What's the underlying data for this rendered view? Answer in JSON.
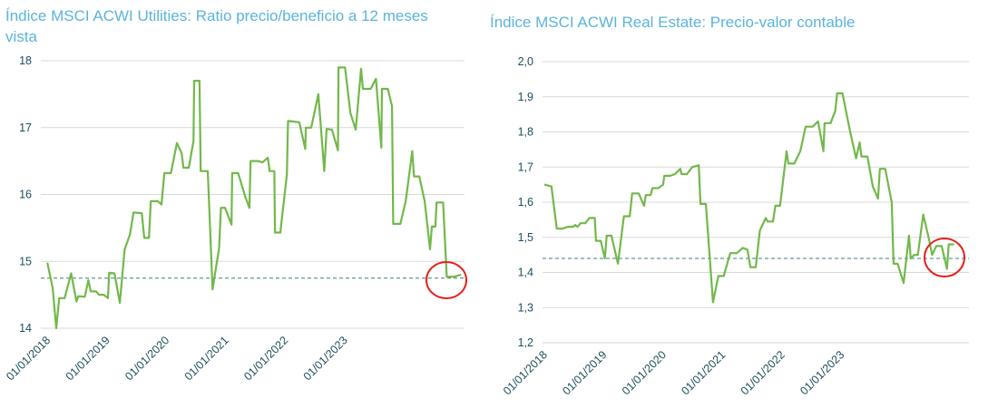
{
  "chart_data": [
    {
      "type": "line",
      "title": "Índice MSCI ACWI Utilities: Ratio precio/beneficio a 12 meses vista",
      "x": [
        2018.0,
        2018.09,
        2018.15,
        2018.2,
        2018.29,
        2018.4,
        2018.49,
        2018.52,
        2018.63,
        2018.69,
        2018.73,
        2018.82,
        2018.87,
        2018.95,
        2019.02,
        2019.04,
        2019.13,
        2019.22,
        2019.3,
        2019.39,
        2019.45,
        2019.59,
        2019.63,
        2019.71,
        2019.74,
        2019.86,
        2019.92,
        2019.97,
        2020.08,
        2020.18,
        2020.26,
        2020.29,
        2020.38,
        2020.46,
        2020.47,
        2020.56,
        2020.58,
        2020.7,
        2020.78,
        2020.89,
        2020.92,
        2020.99,
        2021.1,
        2021.11,
        2021.21,
        2021.33,
        2021.4,
        2021.42,
        2021.54,
        2021.62,
        2021.71,
        2021.74,
        2021.82,
        2021.83,
        2021.92,
        2022.03,
        2022.05,
        2022.24,
        2022.34,
        2022.35,
        2022.44,
        2022.56,
        2022.66,
        2022.7,
        2022.79,
        2022.89,
        2022.9,
        2023.01,
        2023.1,
        2023.19,
        2023.28,
        2023.31,
        2023.44,
        2023.53,
        2023.62,
        2023.63,
        2023.73,
        2023.8,
        2023.82,
        2023.94,
        2024.03,
        2024.14,
        2024.17,
        2024.26,
        2024.35,
        2024.44,
        2024.47,
        2024.53,
        2024.55,
        2024.66,
        2024.72,
        2024.84,
        2024.96
      ],
      "series": [
        {
          "color": "#72b84a",
          "values": [
            14.98,
            14.6,
            14.0,
            14.45,
            14.45,
            14.82,
            14.4,
            14.48,
            14.47,
            14.72,
            14.55,
            14.55,
            14.5,
            14.5,
            14.45,
            14.83,
            14.82,
            14.38,
            15.18,
            15.4,
            15.73,
            15.72,
            15.35,
            15.35,
            15.9,
            15.9,
            15.85,
            16.32,
            16.32,
            16.77,
            16.62,
            16.4,
            16.4,
            16.8,
            17.7,
            17.7,
            16.35,
            16.35,
            14.58,
            15.2,
            15.8,
            15.8,
            15.55,
            16.32,
            16.32,
            15.97,
            15.8,
            16.5,
            16.5,
            16.48,
            16.55,
            16.35,
            16.35,
            15.43,
            15.43,
            16.3,
            17.1,
            17.08,
            16.68,
            17.0,
            17.0,
            17.5,
            16.35,
            16.98,
            16.97,
            16.66,
            17.9,
            17.9,
            17.22,
            16.97,
            17.88,
            17.58,
            17.58,
            17.73,
            16.7,
            17.58,
            17.58,
            17.32,
            15.56,
            15.56,
            15.9,
            16.65,
            16.27,
            16.27,
            15.9,
            15.18,
            15.52,
            15.52,
            15.88,
            15.88,
            14.77,
            14.77,
            14.8
          ]
        }
      ],
      "hline": 14.75,
      "xlim": [
        2017.89,
        2025.02
      ],
      "xticks": [
        {
          "value": 2018,
          "label": "01/01/2018"
        },
        {
          "value": 2019,
          "label": "01/01/2019"
        },
        {
          "value": 2020,
          "label": "01/01/2020"
        },
        {
          "value": 2021,
          "label": "01/01/2021"
        },
        {
          "value": 2022,
          "label": "01/01/2022"
        },
        {
          "value": 2023,
          "label": "01/01/2023"
        }
      ],
      "ylim": [
        14,
        18
      ],
      "yticks": [
        14,
        15,
        16,
        17,
        18
      ],
      "grid": true
    },
    {
      "type": "line",
      "title": "Índice MSCI ACWI Real Estate: Precio-valor contable",
      "x": [
        2018.0,
        2018.12,
        2018.21,
        2018.31,
        2018.4,
        2018.49,
        2018.52,
        2018.56,
        2018.61,
        2018.69,
        2018.76,
        2018.85,
        2018.87,
        2018.95,
        2019.02,
        2019.05,
        2019.13,
        2019.24,
        2019.34,
        2019.44,
        2019.48,
        2019.59,
        2019.68,
        2019.71,
        2019.79,
        2019.82,
        2019.92,
        2020.0,
        2020.02,
        2020.12,
        2020.2,
        2020.29,
        2020.31,
        2020.4,
        2020.49,
        2020.6,
        2020.63,
        2020.72,
        2020.84,
        2020.93,
        2021.02,
        2021.13,
        2021.24,
        2021.34,
        2021.42,
        2021.47,
        2021.56,
        2021.63,
        2021.73,
        2021.76,
        2021.85,
        2021.89,
        2021.97,
        2022.08,
        2022.11,
        2022.21,
        2022.31,
        2022.4,
        2022.52,
        2022.61,
        2022.7,
        2022.72,
        2022.82,
        2022.9,
        2022.93,
        2023.02,
        2023.15,
        2023.25,
        2023.31,
        2023.34,
        2023.44,
        2023.53,
        2023.62,
        2023.65,
        2023.74,
        2023.85,
        2023.88,
        2023.95,
        2024.05,
        2024.14,
        2024.17,
        2024.23,
        2024.29,
        2024.38,
        2024.47,
        2024.53,
        2024.6,
        2024.69,
        2024.78,
        2024.81,
        2024.9
      ],
      "series": [
        {
          "color": "#72b84a",
          "values": [
            1.65,
            1.645,
            1.525,
            1.525,
            1.53,
            1.53,
            1.535,
            1.53,
            1.54,
            1.54,
            1.555,
            1.555,
            1.49,
            1.49,
            1.44,
            1.505,
            1.505,
            1.425,
            1.56,
            1.56,
            1.625,
            1.625,
            1.59,
            1.62,
            1.62,
            1.64,
            1.64,
            1.65,
            1.675,
            1.675,
            1.68,
            1.695,
            1.68,
            1.68,
            1.7,
            1.705,
            1.595,
            1.595,
            1.315,
            1.39,
            1.39,
            1.455,
            1.455,
            1.47,
            1.465,
            1.415,
            1.415,
            1.52,
            1.555,
            1.545,
            1.545,
            1.59,
            1.59,
            1.745,
            1.71,
            1.71,
            1.745,
            1.815,
            1.815,
            1.83,
            1.745,
            1.825,
            1.825,
            1.86,
            1.91,
            1.91,
            1.8,
            1.725,
            1.77,
            1.73,
            1.73,
            1.645,
            1.61,
            1.695,
            1.695,
            1.6,
            1.425,
            1.425,
            1.37,
            1.505,
            1.44,
            1.45,
            1.45,
            1.565,
            1.5,
            1.45,
            1.475,
            1.475,
            1.41,
            1.48,
            1.48
          ]
        }
      ],
      "hline": 1.44,
      "xlim": [
        2017.97,
        2025.15
      ],
      "xticks": [
        {
          "value": 2018,
          "label": "01/01/2018"
        },
        {
          "value": 2019,
          "label": "01/01/2019"
        },
        {
          "value": 2020,
          "label": "01/01/2020"
        },
        {
          "value": 2021,
          "label": "01/01/2021"
        },
        {
          "value": 2022,
          "label": "01/01/2022"
        },
        {
          "value": 2023,
          "label": "01/01/2023"
        }
      ],
      "ylim": [
        1.2,
        2.0
      ],
      "yticks": [
        {
          "value": 1.2,
          "label": "1,2"
        },
        {
          "value": 1.3,
          "label": "1,3"
        },
        {
          "value": 1.4,
          "label": "1,4"
        },
        {
          "value": 1.5,
          "label": "1,5"
        },
        {
          "value": 1.6,
          "label": "1,6"
        },
        {
          "value": 1.7,
          "label": "1,7"
        },
        {
          "value": 1.8,
          "label": "1,8"
        },
        {
          "value": 1.9,
          "label": "1,9"
        },
        {
          "value": 2.0,
          "label": "2,0"
        }
      ],
      "grid": true
    }
  ]
}
